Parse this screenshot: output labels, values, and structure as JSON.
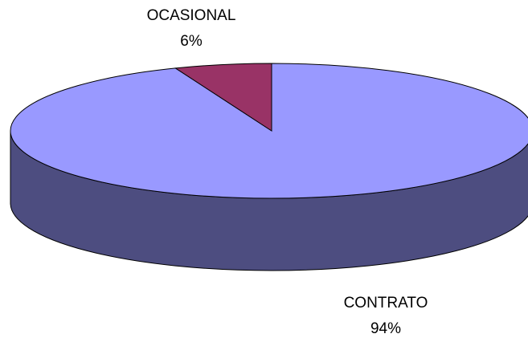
{
  "chart_data": {
    "type": "pie3d",
    "categories": [
      "CONTRATO",
      "OCASIONAL"
    ],
    "values": [
      94,
      6
    ],
    "value_labels": [
      "94%",
      "6%"
    ],
    "colors": [
      "#9999ff",
      "#993366"
    ]
  }
}
